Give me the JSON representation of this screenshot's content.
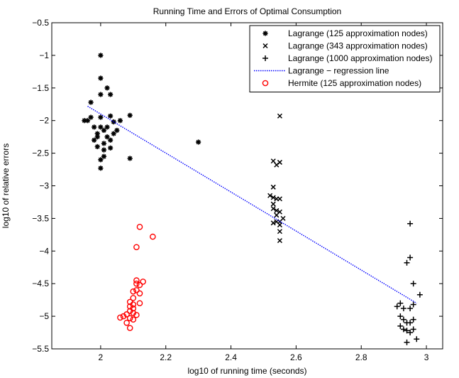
{
  "chart_data": {
    "type": "scatter",
    "title": "Running Time and Errors of Optimal Consumption",
    "xlabel": "log10 of running time (seconds)",
    "ylabel": "log10 of relative errors",
    "xlim": [
      1.85,
      3.05
    ],
    "ylim": [
      -5.5,
      -0.5
    ],
    "xticks": [
      2,
      2.2,
      2.4,
      2.6,
      2.8,
      3
    ],
    "xtick_labels": [
      "2",
      "2.2",
      "2.4",
      "2.6",
      "2.8",
      "3"
    ],
    "yticks": [
      -5.5,
      -5,
      -4.5,
      -4,
      -3.5,
      -3,
      -2.5,
      -2,
      -1.5,
      -1,
      -0.5
    ],
    "ytick_labels": [
      "−5.5",
      "−5",
      "−4.5",
      "−4",
      "−3.5",
      "−3",
      "−2.5",
      "−2",
      "−1.5",
      "−1",
      "−0.5"
    ],
    "grid": false,
    "legend_position": "top-right",
    "series": [
      {
        "name": "Lagrange (125 approximation nodes)",
        "marker": "asterisk",
        "color": "#000000",
        "points": [
          [
            2.0,
            -1.0
          ],
          [
            2.0,
            -1.35
          ],
          [
            2.0,
            -1.6
          ],
          [
            2.03,
            -1.6
          ],
          [
            2.02,
            -1.5
          ],
          [
            1.97,
            -1.72
          ],
          [
            1.95,
            -2.0
          ],
          [
            1.96,
            -2.0
          ],
          [
            1.97,
            -1.95
          ],
          [
            1.98,
            -2.1
          ],
          [
            1.98,
            -2.3
          ],
          [
            1.99,
            -2.25
          ],
          [
            1.99,
            -2.4
          ],
          [
            2.0,
            -1.95
          ],
          [
            2.0,
            -2.1
          ],
          [
            2.01,
            -2.15
          ],
          [
            2.0,
            -2.73
          ],
          [
            2.0,
            -2.6
          ],
          [
            2.01,
            -2.45
          ],
          [
            2.01,
            -2.35
          ],
          [
            2.02,
            -2.25
          ],
          [
            2.02,
            -2.1
          ],
          [
            2.03,
            -2.3
          ],
          [
            2.03,
            -2.42
          ],
          [
            2.04,
            -2.2
          ],
          [
            2.04,
            -2.02
          ],
          [
            2.05,
            -2.15
          ],
          [
            2.06,
            -2.0
          ],
          [
            2.09,
            -1.92
          ],
          [
            2.09,
            -2.58
          ],
          [
            1.99,
            -2.2
          ],
          [
            2.01,
            -2.55
          ],
          [
            2.03,
            -1.93
          ],
          [
            2.3,
            -2.33
          ]
        ]
      },
      {
        "name": "Lagrange (343 approximation nodes)",
        "marker": "x",
        "color": "#000000",
        "points": [
          [
            2.55,
            -1.93
          ],
          [
            2.53,
            -2.62
          ],
          [
            2.55,
            -2.64
          ],
          [
            2.54,
            -2.68
          ],
          [
            2.53,
            -3.02
          ],
          [
            2.52,
            -3.15
          ],
          [
            2.53,
            -3.18
          ],
          [
            2.54,
            -3.2
          ],
          [
            2.55,
            -3.2
          ],
          [
            2.53,
            -3.28
          ],
          [
            2.53,
            -3.35
          ],
          [
            2.54,
            -3.38
          ],
          [
            2.54,
            -3.45
          ],
          [
            2.55,
            -3.4
          ],
          [
            2.56,
            -3.5
          ],
          [
            2.55,
            -3.55
          ],
          [
            2.54,
            -3.55
          ],
          [
            2.53,
            -3.57
          ],
          [
            2.55,
            -3.6
          ],
          [
            2.55,
            -3.7
          ],
          [
            2.55,
            -3.84
          ]
        ]
      },
      {
        "name": "Lagrange (1000 approximation nodes)",
        "marker": "plus",
        "color": "#000000",
        "points": [
          [
            2.95,
            -3.58
          ],
          [
            2.95,
            -4.1
          ],
          [
            2.94,
            -4.18
          ],
          [
            2.96,
            -4.5
          ],
          [
            2.98,
            -4.67
          ],
          [
            2.92,
            -4.8
          ],
          [
            2.91,
            -4.85
          ],
          [
            2.93,
            -4.88
          ],
          [
            2.95,
            -4.88
          ],
          [
            2.96,
            -4.82
          ],
          [
            2.92,
            -5.0
          ],
          [
            2.93,
            -5.05
          ],
          [
            2.94,
            -5.1
          ],
          [
            2.95,
            -5.1
          ],
          [
            2.96,
            -5.05
          ],
          [
            2.93,
            -5.2
          ],
          [
            2.94,
            -5.22
          ],
          [
            2.95,
            -5.25
          ],
          [
            2.96,
            -5.2
          ],
          [
            2.97,
            -5.35
          ],
          [
            2.94,
            -5.4
          ],
          [
            2.92,
            -5.15
          ]
        ]
      },
      {
        "name": "Lagrange − regression line",
        "marker": "line",
        "color": "#0000ff",
        "line": [
          [
            1.96,
            -1.78
          ],
          [
            2.97,
            -4.8
          ]
        ]
      },
      {
        "name": "Hermite (125 approximation nodes)",
        "marker": "circle",
        "color": "#ff0000",
        "points": [
          [
            2.12,
            -3.63
          ],
          [
            2.16,
            -3.78
          ],
          [
            2.11,
            -3.94
          ],
          [
            2.11,
            -4.45
          ],
          [
            2.12,
            -4.52
          ],
          [
            2.11,
            -4.5
          ],
          [
            2.13,
            -4.47
          ],
          [
            2.11,
            -4.6
          ],
          [
            2.1,
            -4.62
          ],
          [
            2.12,
            -4.65
          ],
          [
            2.1,
            -4.72
          ],
          [
            2.09,
            -4.78
          ],
          [
            2.1,
            -4.82
          ],
          [
            2.12,
            -4.8
          ],
          [
            2.09,
            -4.85
          ],
          [
            2.1,
            -4.88
          ],
          [
            2.09,
            -4.92
          ],
          [
            2.1,
            -4.95
          ],
          [
            2.08,
            -4.97
          ],
          [
            2.07,
            -5.0
          ],
          [
            2.06,
            -5.02
          ],
          [
            2.09,
            -5.03
          ],
          [
            2.1,
            -5.05
          ],
          [
            2.08,
            -5.1
          ],
          [
            2.09,
            -5.18
          ],
          [
            2.11,
            -4.98
          ]
        ]
      }
    ]
  }
}
